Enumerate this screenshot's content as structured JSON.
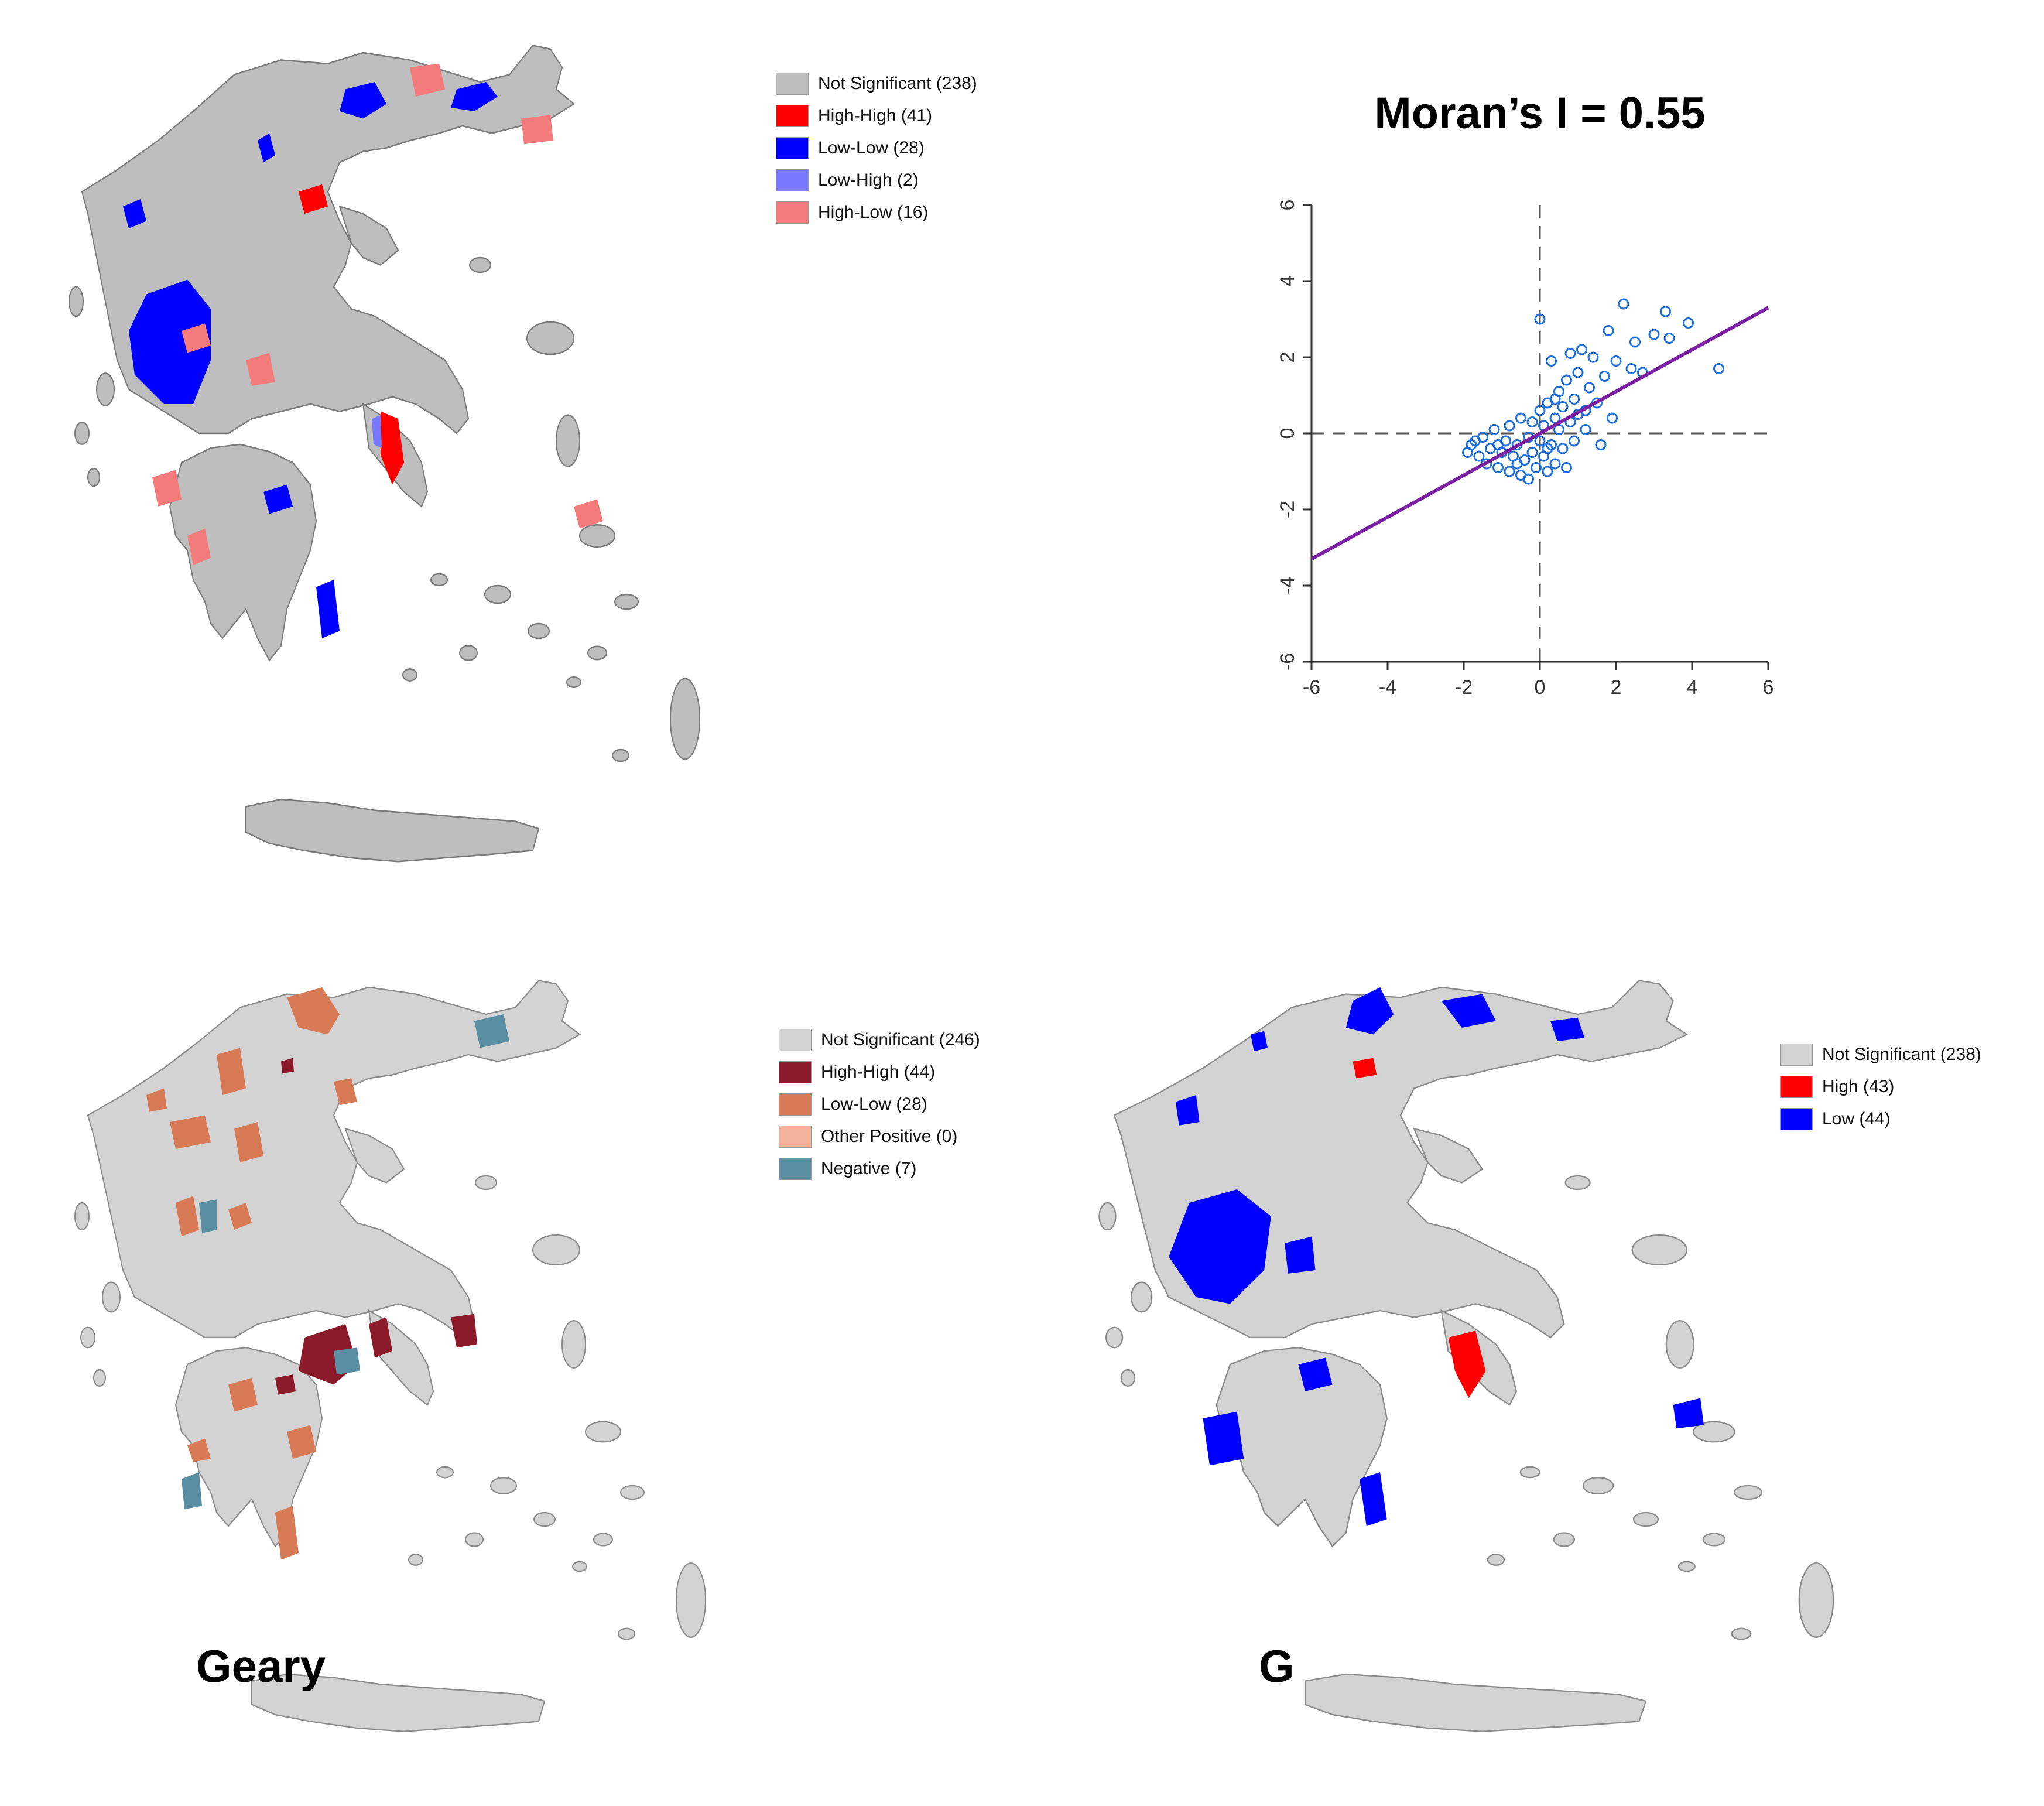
{
  "lisa_map": {
    "legend": [
      {
        "label": "Not Significant (238)",
        "color": "#bebebe"
      },
      {
        "label": "High-High (41)",
        "color": "#ff0000"
      },
      {
        "label": "Low-Low (28)",
        "color": "#0000ff"
      },
      {
        "label": "Low-High (2)",
        "color": "#7777ff"
      },
      {
        "label": "High-Low (16)",
        "color": "#f47b7b"
      }
    ]
  },
  "moran": {
    "title": "Moran’s I = 0.55"
  },
  "chart_data": {
    "type": "scatter",
    "title": "Moran’s I = 0.55",
    "xlabel": "",
    "ylabel": "",
    "xlim": [
      -6,
      6
    ],
    "ylim": [
      -6,
      6
    ],
    "x_ticks": [
      "-6",
      "-4",
      "-2",
      "0",
      "2",
      "4",
      "6"
    ],
    "y_ticks": [
      "-6",
      "-4",
      "-2",
      "0",
      "2",
      "4",
      "6"
    ],
    "regression_slope": 0.55,
    "regression_intercept": 0.0,
    "line_color": "#7b1fa2",
    "point_color": "#1e6fd9",
    "points": [
      [
        -1.8,
        -0.3
      ],
      [
        -1.6,
        -0.6
      ],
      [
        -1.5,
        -0.1
      ],
      [
        -1.4,
        -0.8
      ],
      [
        -1.3,
        -0.4
      ],
      [
        -1.2,
        0.1
      ],
      [
        -1.1,
        -0.9
      ],
      [
        -1.0,
        -0.5
      ],
      [
        -0.9,
        -0.2
      ],
      [
        -0.8,
        -1.0
      ],
      [
        -0.8,
        0.2
      ],
      [
        -0.7,
        -0.6
      ],
      [
        -0.6,
        -0.3
      ],
      [
        -0.5,
        -1.1
      ],
      [
        -0.5,
        0.4
      ],
      [
        -0.4,
        -0.7
      ],
      [
        -0.3,
        -0.1
      ],
      [
        -0.3,
        -1.2
      ],
      [
        -0.2,
        0.3
      ],
      [
        -0.2,
        -0.5
      ],
      [
        -0.1,
        -0.9
      ],
      [
        0.0,
        -0.2
      ],
      [
        0.0,
        0.6
      ],
      [
        0.0,
        3.0
      ],
      [
        0.1,
        -0.6
      ],
      [
        0.1,
        0.2
      ],
      [
        0.2,
        -1.0
      ],
      [
        0.2,
        0.8
      ],
      [
        0.3,
        -0.3
      ],
      [
        0.3,
        1.9
      ],
      [
        0.4,
        0.4
      ],
      [
        0.4,
        -0.8
      ],
      [
        0.5,
        0.1
      ],
      [
        0.5,
        1.1
      ],
      [
        0.6,
        -0.4
      ],
      [
        0.6,
        0.7
      ],
      [
        0.7,
        1.4
      ],
      [
        0.7,
        -0.9
      ],
      [
        0.8,
        0.3
      ],
      [
        0.8,
        2.1
      ],
      [
        0.9,
        0.9
      ],
      [
        0.9,
        -0.2
      ],
      [
        1.0,
        1.6
      ],
      [
        1.0,
        0.5
      ],
      [
        1.1,
        2.2
      ],
      [
        1.2,
        0.1
      ],
      [
        1.3,
        1.2
      ],
      [
        1.4,
        2.0
      ],
      [
        1.5,
        0.8
      ],
      [
        1.6,
        -0.3
      ],
      [
        1.7,
        1.5
      ],
      [
        1.8,
        2.7
      ],
      [
        1.9,
        0.4
      ],
      [
        2.0,
        1.9
      ],
      [
        2.2,
        3.4
      ],
      [
        2.4,
        1.7
      ],
      [
        2.5,
        2.4
      ],
      [
        2.7,
        1.6
      ],
      [
        3.0,
        2.6
      ],
      [
        3.3,
        3.2
      ],
      [
        3.4,
        2.5
      ],
      [
        3.9,
        2.9
      ],
      [
        4.7,
        1.7
      ],
      [
        -1.9,
        -0.5
      ],
      [
        -1.7,
        -0.2
      ],
      [
        -1.1,
        -0.3
      ],
      [
        -0.6,
        -0.8
      ],
      [
        0.2,
        -0.4
      ],
      [
        0.4,
        0.9
      ],
      [
        1.2,
        0.6
      ]
    ]
  },
  "geary_map": {
    "label": "Geary",
    "legend": [
      {
        "label": "Not Significant (246)",
        "color": "#d3d3d3"
      },
      {
        "label": "High-High (44)",
        "color": "#8b1a2b"
      },
      {
        "label": "Low-Low (28)",
        "color": "#d87a55"
      },
      {
        "label": "Other Positive (0)",
        "color": "#f4b29b"
      },
      {
        "label": "Negative (7)",
        "color": "#5a8fa3"
      }
    ]
  },
  "g_map": {
    "label": "G",
    "legend": [
      {
        "label": "Not Significant (238)",
        "color": "#d3d3d3"
      },
      {
        "label": "High (43)",
        "color": "#ff0000"
      },
      {
        "label": "Low (44)",
        "color": "#0000ff"
      }
    ]
  }
}
